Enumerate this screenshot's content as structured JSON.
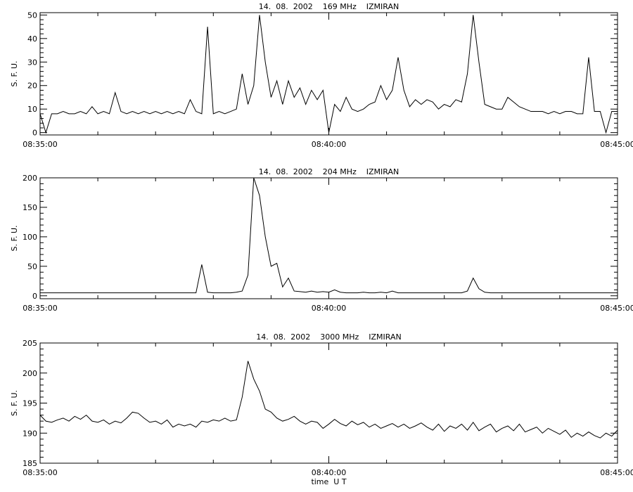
{
  "chart_data": [
    {
      "type": "line",
      "title": "14.  08.  2002    169 MHz    IZMIRAN",
      "ylabel": "S. F. U.",
      "color": "#000000",
      "x": [
        0,
        0.1,
        0.2,
        0.3,
        0.4,
        0.5,
        0.6,
        0.7,
        0.8,
        0.9,
        1,
        1.1,
        1.2,
        1.3,
        1.4,
        1.5,
        1.6,
        1.7,
        1.8,
        1.9,
        2,
        2.1,
        2.2,
        2.3,
        2.4,
        2.5,
        2.6,
        2.7,
        2.8,
        2.9,
        3,
        3.1,
        3.2,
        3.3,
        3.4,
        3.5,
        3.6,
        3.7,
        3.8,
        3.9,
        4,
        4.1,
        4.2,
        4.3,
        4.4,
        4.5,
        4.6,
        4.7,
        4.8,
        4.9,
        5,
        5.1,
        5.2,
        5.3,
        5.4,
        5.5,
        5.6,
        5.7,
        5.8,
        5.9,
        6,
        6.1,
        6.2,
        6.3,
        6.4,
        6.5,
        6.6,
        6.7,
        6.8,
        6.9,
        7,
        7.1,
        7.2,
        7.3,
        7.4,
        7.5,
        7.6,
        7.7,
        7.8,
        7.9,
        8,
        8.1,
        8.2,
        8.3,
        8.4,
        8.5,
        8.6,
        8.7,
        8.8,
        8.9,
        9,
        9.1,
        9.2,
        9.3,
        9.4,
        9.5,
        9.6,
        9.7,
        9.8,
        9.9,
        10
      ],
      "values": [
        8,
        0,
        8,
        8,
        9,
        8,
        8,
        9,
        8,
        11,
        8,
        9,
        8,
        17,
        9,
        8,
        9,
        8,
        9,
        8,
        9,
        8,
        9,
        8,
        9,
        8,
        14,
        9,
        8,
        45,
        8,
        9,
        8,
        9,
        10,
        25,
        12,
        20,
        50,
        30,
        15,
        22,
        12,
        22,
        15,
        19,
        12,
        18,
        14,
        18,
        0,
        12,
        9,
        15,
        10,
        9,
        10,
        12,
        13,
        20,
        14,
        18,
        32,
        18,
        11,
        14,
        12,
        14,
        13,
        10,
        12,
        11,
        14,
        13,
        25,
        50,
        30,
        12,
        11,
        10,
        10,
        15,
        13,
        11,
        10,
        9,
        9,
        9,
        8,
        9,
        8,
        9,
        9,
        8,
        8,
        32,
        9,
        9,
        0,
        9,
        9
      ],
      "xlim": [
        0,
        10
      ],
      "xticks": [
        {
          "value": 0,
          "label": "08:35:00"
        },
        {
          "value": 5,
          "label": "08:40:00"
        },
        {
          "value": 10,
          "label": "08:45:00"
        }
      ],
      "ylim": [
        -1,
        51
      ],
      "yticks": [
        0,
        10,
        20,
        30,
        40,
        50
      ]
    },
    {
      "type": "line",
      "title": "14.  08.  2002    204 MHz    IZMIRAN",
      "ylabel": "S. F. U.",
      "color": "#000000",
      "x": [
        0,
        0.1,
        0.2,
        0.3,
        0.4,
        0.5,
        0.6,
        0.7,
        0.8,
        0.9,
        1,
        1.1,
        1.2,
        1.3,
        1.4,
        1.5,
        1.6,
        1.7,
        1.8,
        1.9,
        2,
        2.1,
        2.2,
        2.3,
        2.4,
        2.5,
        2.6,
        2.7,
        2.8,
        2.9,
        3,
        3.1,
        3.2,
        3.3,
        3.4,
        3.5,
        3.6,
        3.7,
        3.8,
        3.9,
        4,
        4.1,
        4.2,
        4.3,
        4.4,
        4.5,
        4.6,
        4.7,
        4.8,
        4.9,
        5,
        5.1,
        5.2,
        5.3,
        5.4,
        5.5,
        5.6,
        5.7,
        5.8,
        5.9,
        6,
        6.1,
        6.2,
        6.3,
        6.4,
        6.5,
        6.6,
        6.7,
        6.8,
        6.9,
        7,
        7.1,
        7.2,
        7.3,
        7.4,
        7.5,
        7.6,
        7.7,
        7.8,
        7.9,
        8,
        8.1,
        8.2,
        8.3,
        8.4,
        8.5,
        8.6,
        8.7,
        8.8,
        8.9,
        9,
        9.1,
        9.2,
        9.3,
        9.4,
        9.5,
        9.6,
        9.7,
        9.8,
        9.9,
        10
      ],
      "values": [
        5,
        5,
        5,
        5,
        5,
        5,
        5,
        5,
        5,
        5,
        5,
        5,
        5,
        5,
        5,
        5,
        5,
        5,
        5,
        5,
        5,
        5,
        5,
        5,
        5,
        5,
        5,
        5,
        53,
        6,
        5,
        5,
        5,
        5,
        6,
        8,
        35,
        200,
        170,
        100,
        50,
        55,
        15,
        30,
        8,
        7,
        6,
        8,
        6,
        7,
        6,
        10,
        6,
        5,
        5,
        5,
        6,
        5,
        5,
        6,
        5,
        8,
        5,
        5,
        5,
        5,
        5,
        5,
        5,
        5,
        5,
        5,
        5,
        5,
        8,
        30,
        12,
        6,
        5,
        5,
        5,
        5,
        5,
        5,
        5,
        5,
        5,
        5,
        5,
        5,
        5,
        5,
        5,
        5,
        5,
        5,
        5,
        5,
        5,
        5,
        5
      ],
      "xlim": [
        0,
        10
      ],
      "xticks": [
        {
          "value": 0,
          "label": "08:35:00"
        },
        {
          "value": 5,
          "label": "08:40:00"
        },
        {
          "value": 10,
          "label": "08:45:00"
        }
      ],
      "ylim": [
        -5,
        200
      ],
      "yticks": [
        0,
        50,
        100,
        150,
        200
      ]
    },
    {
      "type": "line",
      "title": "14.  08.  2002    3000 MHz    IZMIRAN",
      "ylabel": "S. F. U.",
      "xlabel": "time  U T",
      "color": "#000000",
      "x": [
        0,
        0.1,
        0.2,
        0.3,
        0.4,
        0.5,
        0.6,
        0.7,
        0.8,
        0.9,
        1,
        1.1,
        1.2,
        1.3,
        1.4,
        1.5,
        1.6,
        1.7,
        1.8,
        1.9,
        2,
        2.1,
        2.2,
        2.3,
        2.4,
        2.5,
        2.6,
        2.7,
        2.8,
        2.9,
        3,
        3.1,
        3.2,
        3.3,
        3.4,
        3.5,
        3.6,
        3.7,
        3.8,
        3.9,
        4,
        4.1,
        4.2,
        4.3,
        4.4,
        4.5,
        4.6,
        4.7,
        4.8,
        4.9,
        5,
        5.1,
        5.2,
        5.3,
        5.4,
        5.5,
        5.6,
        5.7,
        5.8,
        5.9,
        6,
        6.1,
        6.2,
        6.3,
        6.4,
        6.5,
        6.6,
        6.7,
        6.8,
        6.9,
        7,
        7.1,
        7.2,
        7.3,
        7.4,
        7.5,
        7.6,
        7.7,
        7.8,
        7.9,
        8,
        8.1,
        8.2,
        8.3,
        8.4,
        8.5,
        8.6,
        8.7,
        8.8,
        8.9,
        9,
        9.1,
        9.2,
        9.3,
        9.4,
        9.5,
        9.6,
        9.7,
        9.8,
        9.9,
        10
      ],
      "values": [
        193,
        192,
        191.8,
        192.2,
        192.5,
        192,
        192.8,
        192.3,
        193,
        192,
        191.8,
        192.2,
        191.5,
        192,
        191.7,
        192.5,
        193.5,
        193.3,
        192.5,
        191.8,
        192,
        191.5,
        192.2,
        191,
        191.5,
        191.2,
        191.5,
        191,
        192,
        191.8,
        192.2,
        192,
        192.5,
        192,
        192.2,
        196,
        202,
        199,
        197,
        194,
        193.5,
        192.5,
        192,
        192.3,
        192.8,
        192,
        191.5,
        192,
        191.8,
        190.8,
        191.5,
        192.3,
        191.6,
        191.2,
        192,
        191.4,
        191.8,
        191,
        191.5,
        190.8,
        191.2,
        191.6,
        191,
        191.5,
        190.8,
        191.2,
        191.7,
        191,
        190.5,
        191.5,
        190.3,
        191.2,
        190.8,
        191.5,
        190.5,
        191.8,
        190.4,
        191,
        191.5,
        190.2,
        190.8,
        191.2,
        190.4,
        191.5,
        190.2,
        190.6,
        191,
        190,
        190.8,
        190.3,
        189.8,
        190.5,
        189.3,
        190,
        189.5,
        190.2,
        189.6,
        189.2,
        190,
        189.5,
        190.5
      ],
      "xlim": [
        0,
        10
      ],
      "xticks": [
        {
          "value": 0,
          "label": "08:35:00"
        },
        {
          "value": 5,
          "label": "08:40:00"
        },
        {
          "value": 10,
          "label": "08:45:00"
        }
      ],
      "ylim": [
        185,
        205
      ],
      "yticks": [
        185,
        190,
        195,
        200,
        205
      ]
    }
  ]
}
